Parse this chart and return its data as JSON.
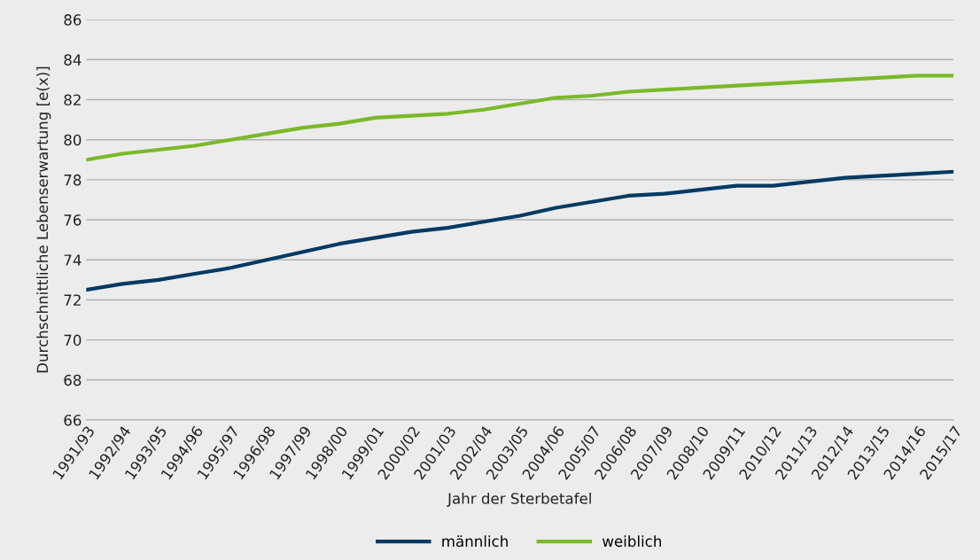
{
  "chart_data": {
    "type": "line",
    "xlabel": "Jahr der Sterbetafel",
    "ylabel": "Durchschnittliche Lebenserwartung [e(x)]",
    "categories": [
      "1991/93",
      "1992/94",
      "1993/95",
      "1994/96",
      "1995/97",
      "1996/98",
      "1997/99",
      "1998/00",
      "1999/01",
      "2000/02",
      "2001/03",
      "2002/04",
      "2003/05",
      "2004/06",
      "2005/07",
      "2006/08",
      "2007/09",
      "2008/10",
      "2009/11",
      "2010/12",
      "2011/13",
      "2012/14",
      "2013/15",
      "2014/16",
      "2015/17"
    ],
    "series": [
      {
        "name": "männlich",
        "color": "#003a63",
        "values": [
          72.5,
          72.8,
          73.0,
          73.3,
          73.6,
          74.0,
          74.4,
          74.8,
          75.1,
          75.4,
          75.6,
          75.9,
          76.2,
          76.6,
          76.9,
          77.2,
          77.3,
          77.5,
          77.7,
          77.7,
          77.9,
          78.1,
          78.2,
          78.3,
          78.4
        ]
      },
      {
        "name": "weiblich",
        "color": "#7ab929",
        "values": [
          79.0,
          79.3,
          79.5,
          79.7,
          80.0,
          80.3,
          80.6,
          80.8,
          81.1,
          81.2,
          81.3,
          81.5,
          81.8,
          82.1,
          82.2,
          82.4,
          82.5,
          82.6,
          82.7,
          82.8,
          82.9,
          83.0,
          83.1,
          83.2,
          83.2
        ]
      }
    ],
    "ylim": [
      66,
      86
    ],
    "yticks": [
      66,
      68,
      70,
      72,
      74,
      76,
      78,
      80,
      82,
      84,
      86
    ],
    "grid": "y",
    "legend": "bottom",
    "marker": "none",
    "line_style": "solid"
  }
}
